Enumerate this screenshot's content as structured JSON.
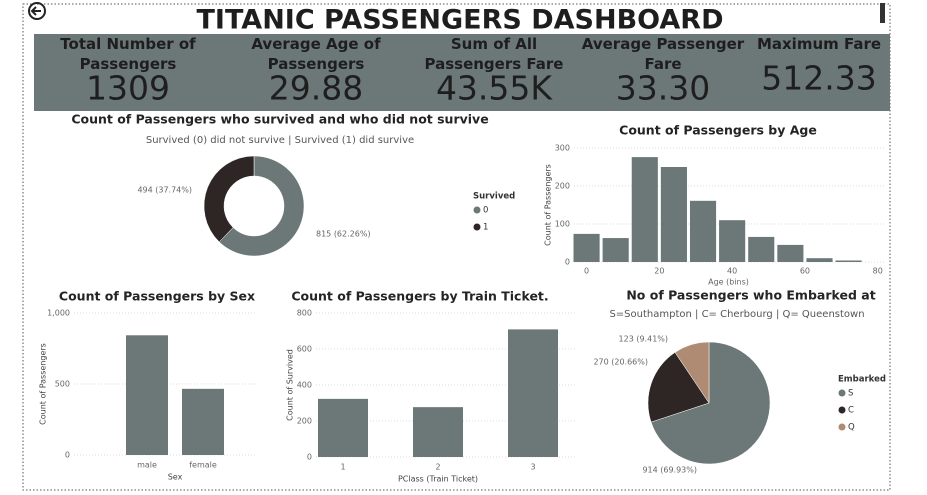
{
  "header": {
    "title": "TITANIC PASSENGERS DASHBOARD"
  },
  "kpis": [
    {
      "label": "Total Number of Passengers",
      "value": "1309"
    },
    {
      "label": "Average Age of Passengers",
      "value": "29.88"
    },
    {
      "label": "Sum of All Passengers Fare",
      "value": "43.55K"
    },
    {
      "label": "Average Passenger Fare",
      "value": "33.30"
    },
    {
      "label": "Maximum Fare",
      "value": "512.33"
    }
  ],
  "chart_data": [
    {
      "type": "donut",
      "title": "Count of Passengers who survived and who did not survive",
      "subtitle": "Survived (0) did not survive | Survived (1) did  survive",
      "legend_title": "Survived",
      "categories": [
        "0",
        "1"
      ],
      "values": [
        815,
        494
      ],
      "value_labels": [
        "815 (62.26%)",
        "494 (37.74%)"
      ],
      "colors": [
        "#6b7877",
        "#2e2525"
      ]
    },
    {
      "type": "histogram",
      "title": "Count of Passengers by Age",
      "xlabel": "Age (bins)",
      "ylabel": "Count of Passengers",
      "bins": [
        -4,
        4,
        12,
        20,
        28,
        36,
        44,
        52,
        60,
        68,
        76
      ],
      "values": [
        74,
        63,
        276,
        250,
        161,
        110,
        66,
        45,
        10,
        4
      ],
      "color": "#6b7877",
      "xlim": [
        -4,
        82
      ],
      "xticks": [
        0,
        20,
        40,
        60,
        80
      ],
      "ylim": [
        0,
        300
      ],
      "yticks": [
        0,
        100,
        200,
        300
      ],
      "grid": true
    },
    {
      "type": "bar",
      "title": "Count of Passengers by Sex",
      "xlabel": "Sex",
      "ylabel": "Count of Passengers",
      "categories": [
        "male",
        "female"
      ],
      "values": [
        843,
        466
      ],
      "color": "#6b7877",
      "ylim": [
        0,
        1000
      ],
      "yticks": [
        0,
        500,
        {
          "value": 1000,
          "label": "1,000"
        }
      ],
      "grid": true
    },
    {
      "type": "bar",
      "title": "Count of Passengers by Train Ticket.",
      "xlabel": "PClass (Train Ticket)",
      "ylabel": "Count of Survived",
      "categories": [
        "1",
        "2",
        "3"
      ],
      "values": [
        323,
        277,
        709
      ],
      "color": "#6b7877",
      "ylim": [
        0,
        800
      ],
      "yticks": [
        0,
        200,
        400,
        600,
        800
      ],
      "grid": true
    },
    {
      "type": "pie",
      "title": "No of Passengers who Embarked at",
      "subtitle": "S=Southampton | C= Cherbourg | Q= Queenstown",
      "legend_title": "Embarked",
      "categories": [
        "S",
        "C",
        "Q"
      ],
      "values": [
        914,
        270,
        123
      ],
      "value_labels": [
        "914 (69.93%)",
        "270 (20.66%)",
        "123 (9.41%)"
      ],
      "colors": [
        "#6b7877",
        "#2e2525",
        "#b08b74"
      ]
    }
  ]
}
